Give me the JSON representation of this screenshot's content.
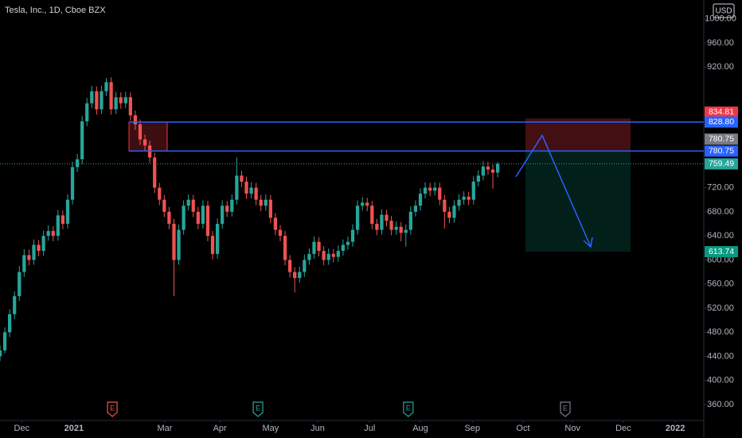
{
  "chart_data": {
    "type": "candlestick",
    "title": "Tesla, Inc., 1D, Cboe BZX",
    "currency": "USD",
    "x": [
      0,
      2,
      4,
      6,
      8,
      10,
      12,
      14,
      16,
      18,
      20,
      22,
      24,
      26,
      28,
      30,
      32,
      34,
      36,
      38,
      40,
      42,
      44,
      46,
      48,
      50,
      52,
      54,
      56,
      58,
      60,
      62,
      64,
      66,
      68,
      70,
      72,
      74,
      76,
      78,
      80,
      82,
      84,
      86,
      88,
      90,
      92,
      94,
      96,
      98,
      100,
      102,
      104,
      106,
      108,
      110,
      112,
      114,
      116,
      118,
      120,
      122,
      124,
      126,
      128,
      130,
      132,
      134,
      136,
      138,
      140,
      142,
      144,
      146,
      148,
      150,
      152,
      154,
      156,
      158,
      160,
      162,
      164,
      166,
      168,
      170,
      172,
      174,
      176,
      178,
      180,
      182,
      184,
      186,
      188,
      190,
      192,
      194,
      196,
      198,
      200,
      202,
      204,
      206
    ],
    "open": [
      440,
      450,
      480,
      510,
      540,
      580,
      608,
      600,
      625,
      615,
      640,
      648,
      640,
      674,
      660,
      700,
      754,
      767,
      830,
      860,
      880,
      850,
      880,
      895,
      850,
      870,
      860,
      870,
      840,
      825,
      800,
      790,
      770,
      720,
      700,
      680,
      660,
      600,
      650,
      690,
      700,
      680,
      660,
      690,
      640,
      610,
      660,
      690,
      680,
      700,
      740,
      730,
      710,
      720,
      700,
      690,
      700,
      670,
      650,
      640,
      600,
      580,
      570,
      580,
      600,
      610,
      630,
      615,
      600,
      610,
      605,
      615,
      625,
      630,
      650,
      690,
      695,
      690,
      660,
      650,
      675,
      665,
      650,
      655,
      645,
      650,
      680,
      690,
      710,
      720,
      715,
      720,
      700,
      680,
      670,
      690,
      700,
      705,
      700,
      730,
      740,
      755,
      750,
      745
    ],
    "high": [
      458,
      488,
      518,
      548,
      590,
      618,
      617,
      634,
      633,
      649,
      657,
      656,
      683,
      682,
      709,
      763,
      776,
      839,
      869,
      889,
      888,
      889,
      902,
      903,
      879,
      878,
      879,
      878,
      848,
      833,
      808,
      798,
      778,
      728,
      708,
      688,
      668,
      659,
      699,
      709,
      708,
      688,
      699,
      698,
      648,
      669,
      699,
      698,
      709,
      770,
      748,
      738,
      729,
      728,
      708,
      709,
      708,
      678,
      658,
      648,
      608,
      588,
      589,
      609,
      619,
      639,
      638,
      623,
      619,
      618,
      624,
      634,
      639,
      659,
      699,
      704,
      703,
      698,
      668,
      684,
      683,
      673,
      664,
      663,
      659,
      689,
      699,
      719,
      729,
      728,
      729,
      728,
      708,
      688,
      699,
      709,
      714,
      713,
      739,
      749,
      764,
      763,
      758,
      763
    ],
    "low": [
      432,
      445,
      472,
      502,
      532,
      572,
      591,
      592,
      606,
      607,
      632,
      631,
      632,
      651,
      652,
      692,
      746,
      759,
      822,
      852,
      841,
      842,
      872,
      841,
      842,
      851,
      852,
      831,
      816,
      791,
      781,
      761,
      711,
      691,
      671,
      651,
      540,
      592,
      642,
      682,
      671,
      651,
      652,
      631,
      601,
      602,
      652,
      671,
      672,
      692,
      721,
      701,
      702,
      691,
      681,
      682,
      661,
      641,
      631,
      591,
      571,
      546,
      562,
      572,
      592,
      602,
      606,
      591,
      592,
      596,
      597,
      607,
      617,
      622,
      642,
      682,
      681,
      651,
      641,
      642,
      656,
      641,
      642,
      631,
      622,
      642,
      672,
      682,
      702,
      706,
      707,
      691,
      652,
      661,
      662,
      682,
      692,
      691,
      692,
      722,
      732,
      741,
      718,
      737
    ],
    "close": [
      450,
      480,
      510,
      540,
      580,
      608,
      600,
      625,
      615,
      640,
      648,
      640,
      674,
      660,
      700,
      754,
      767,
      830,
      860,
      880,
      850,
      880,
      895,
      850,
      870,
      860,
      870,
      840,
      825,
      800,
      790,
      770,
      720,
      700,
      680,
      660,
      600,
      650,
      690,
      700,
      680,
      660,
      690,
      640,
      610,
      660,
      690,
      680,
      700,
      740,
      730,
      710,
      720,
      700,
      690,
      700,
      670,
      650,
      640,
      600,
      580,
      570,
      580,
      600,
      610,
      630,
      615,
      600,
      610,
      605,
      615,
      625,
      630,
      650,
      690,
      695,
      690,
      660,
      650,
      675,
      665,
      650,
      655,
      645,
      650,
      680,
      690,
      710,
      720,
      715,
      720,
      700,
      680,
      670,
      690,
      700,
      705,
      700,
      730,
      740,
      755,
      750,
      745,
      759.49
    ],
    "up_color": "#26a69a",
    "down_color": "#ef5350",
    "xlim": [
      0,
      290
    ],
    "xticks": [
      {
        "value": 9,
        "label": "Dec"
      },
      {
        "value": 30.6,
        "label": "2021"
      },
      {
        "value": 68.2,
        "label": "Mar"
      },
      {
        "value": 91,
        "label": "Apr"
      },
      {
        "value": 112,
        "label": "May"
      },
      {
        "value": 131.5,
        "label": "Jun"
      },
      {
        "value": 153,
        "label": "Jul"
      },
      {
        "value": 174,
        "label": "Aug"
      },
      {
        "value": 195.5,
        "label": "Sep"
      },
      {
        "value": 216.5,
        "label": "Oct"
      },
      {
        "value": 237,
        "label": "Nov"
      },
      {
        "value": 258,
        "label": "Dec"
      },
      {
        "value": 279.5,
        "label": "2022"
      }
    ],
    "ylim": [
      333.6,
      1031.4
    ],
    "yticks": [
      {
        "value": 360,
        "label": "360.00"
      },
      {
        "value": 400,
        "label": "400.00"
      },
      {
        "value": 440,
        "label": "440.00"
      },
      {
        "value": 480,
        "label": "480.00"
      },
      {
        "value": 520,
        "label": "520.00"
      },
      {
        "value": 560,
        "label": "560.00"
      },
      {
        "value": 600,
        "label": "600.00"
      },
      {
        "value": 640,
        "label": "640.00"
      },
      {
        "value": 680,
        "label": "680.00"
      },
      {
        "value": 720,
        "label": "720.00"
      },
      {
        "value": 920,
        "label": "920.00"
      },
      {
        "value": 960,
        "label": "960.00"
      },
      {
        "value": 1000,
        "label": "1000.00"
      }
    ],
    "levels": [
      {
        "value": 828.8,
        "label": "828.80"
      },
      {
        "value": 780.75,
        "label": "780.75"
      }
    ],
    "level_color": "#2962ff",
    "level_start": 53.4,
    "zone": {
      "x": [
        53.4,
        69.2
      ],
      "color": "#f23645"
    },
    "last_price": {
      "value": 759.49,
      "label": "759.49"
    },
    "position": {
      "x": [
        217.5,
        261
      ],
      "stop": {
        "value": 834.81,
        "label": "834.81"
      },
      "entry": {
        "value": 780.75,
        "label": "780.75"
      },
      "target": {
        "value": 613.74,
        "label": "613.74"
      }
    },
    "earnings": [
      {
        "x": 46.5,
        "label": "E",
        "color": "#ef5350"
      },
      {
        "x": 106.8,
        "label": "E",
        "color": "#26a69a"
      },
      {
        "x": 169,
        "label": "E",
        "color": "#26a69a"
      },
      {
        "x": 234,
        "label": "E",
        "color": "#787b86"
      }
    ]
  }
}
